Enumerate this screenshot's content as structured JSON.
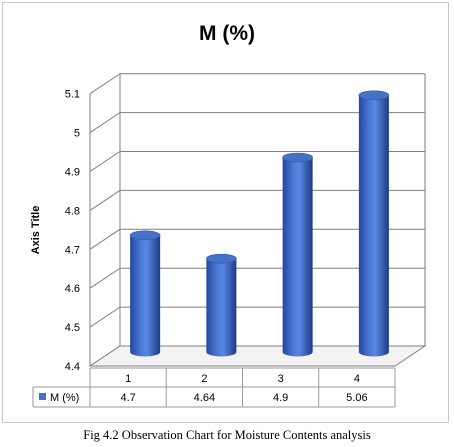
{
  "chart_data": {
    "type": "bar",
    "title": "M (%)",
    "ylabel": "Axis Title",
    "xlabel": "",
    "categories": [
      "1",
      "2",
      "3",
      "4"
    ],
    "series": [
      {
        "name": "M (%)",
        "values": [
          4.7,
          4.64,
          4.9,
          5.06
        ],
        "value_labels": [
          "4.7",
          "4.64",
          "4.9",
          "5.06"
        ]
      }
    ],
    "ylim": [
      4.4,
      5.1
    ],
    "yticks": [
      "4.4",
      "4.5",
      "4.6",
      "4.7",
      "4.8",
      "4.9",
      "5",
      "5.1"
    ],
    "grid": true,
    "legend": "data-table",
    "style": "3d-cylinder",
    "colors": {
      "bar": "#4472C4",
      "bar_dark": "#1f3f8f",
      "bar_light": "#6f98e8",
      "grid": "#7f7f7f"
    }
  },
  "caption": "Fig 4.2 Observation Chart for Moisture Contents analysis"
}
